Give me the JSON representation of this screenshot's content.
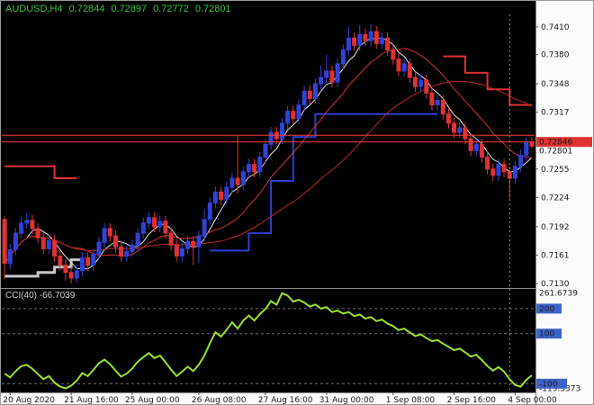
{
  "window": {
    "app": "MetaTrader chart",
    "symbol_period": "AUDUSD,H4"
  },
  "header": {
    "symbol": "AUDUSD,H4",
    "open": "0.72844",
    "high": "0.72897",
    "low": "0.72772",
    "close": "0.72801",
    "color": "#3fc13f"
  },
  "indicator_label": "CCI(40) -66.7039",
  "background": "#000000",
  "scales": {
    "axis_bg": "#fbfbfb",
    "axis_fg": "#1a1a1a",
    "separator": "#8a8a8a",
    "level_tag_bg": "#3c64c8",
    "level_tag_fg": "#ffffff",
    "border": "#9a9a9a"
  },
  "chart_data": [
    {
      "type": "candlestick",
      "title": "AUDUSD H4",
      "ylim": [
        0.71271,
        0.74238
      ],
      "up_color": "#3142d8",
      "down_color": "#e03232",
      "y_ticks": [
        {
          "v": 0.741,
          "label": "0.7410"
        },
        {
          "v": 0.738,
          "label": "0.7380"
        },
        {
          "v": 0.7348,
          "label": "0.7348"
        },
        {
          "v": 0.7317,
          "label": "0.7317"
        },
        {
          "v": 0.7255,
          "label": "0.7255"
        },
        {
          "v": 0.7224,
          "label": "0.7224"
        },
        {
          "v": 0.7192,
          "label": "0.7192"
        },
        {
          "v": 0.7161,
          "label": "0.7161"
        },
        {
          "v": 0.713,
          "label": "0.7130"
        }
      ],
      "x_labels": [
        {
          "i": 1,
          "label": "20 Aug 2020"
        },
        {
          "i": 12,
          "label": "21 Aug 16:00"
        },
        {
          "i": 23,
          "label": "25 Aug 00:00"
        },
        {
          "i": 35,
          "label": "26 Aug 08:00"
        },
        {
          "i": 47,
          "label": "27 Aug 16:00"
        },
        {
          "i": 58,
          "label": "31 Aug 00:00"
        },
        {
          "i": 70,
          "label": "1 Sep 08:00"
        },
        {
          "i": 81,
          "label": "2 Sep 16:00"
        },
        {
          "i": 92,
          "label": "4 Sep 00:00"
        }
      ],
      "candles": [
        [
          0.72,
          0.7204,
          0.7135,
          0.7152
        ],
        [
          0.7152,
          0.7173,
          0.7146,
          0.7167
        ],
        [
          0.7167,
          0.7191,
          0.7161,
          0.7185
        ],
        [
          0.7185,
          0.7203,
          0.7179,
          0.7196
        ],
        [
          0.7196,
          0.7207,
          0.719,
          0.7199
        ],
        [
          0.7199,
          0.7205,
          0.7184,
          0.719
        ],
        [
          0.719,
          0.7196,
          0.7174,
          0.718
        ],
        [
          0.718,
          0.7186,
          0.7162,
          0.7168
        ],
        [
          0.7168,
          0.7183,
          0.7162,
          0.7177
        ],
        [
          0.7177,
          0.7183,
          0.7154,
          0.716
        ],
        [
          0.716,
          0.7166,
          0.7144,
          0.715
        ],
        [
          0.715,
          0.7156,
          0.7133,
          0.7142
        ],
        [
          0.7142,
          0.7148,
          0.713,
          0.7136
        ],
        [
          0.7136,
          0.715,
          0.7131,
          0.7144
        ],
        [
          0.7144,
          0.7164,
          0.7138,
          0.7158
        ],
        [
          0.7158,
          0.7164,
          0.7144,
          0.715
        ],
        [
          0.715,
          0.7168,
          0.7144,
          0.7162
        ],
        [
          0.7162,
          0.7181,
          0.7156,
          0.7175
        ],
        [
          0.7175,
          0.7196,
          0.7169,
          0.719
        ],
        [
          0.719,
          0.7196,
          0.7176,
          0.7182
        ],
        [
          0.7182,
          0.7188,
          0.7164,
          0.717
        ],
        [
          0.717,
          0.7176,
          0.7154,
          0.716
        ],
        [
          0.716,
          0.7171,
          0.7154,
          0.7165
        ],
        [
          0.7165,
          0.7178,
          0.7159,
          0.7172
        ],
        [
          0.7172,
          0.7191,
          0.7166,
          0.7185
        ],
        [
          0.7185,
          0.7202,
          0.7179,
          0.7196
        ],
        [
          0.7196,
          0.7208,
          0.719,
          0.7202
        ],
        [
          0.7202,
          0.7208,
          0.7186,
          0.7192
        ],
        [
          0.7192,
          0.7204,
          0.7186,
          0.7198
        ],
        [
          0.7198,
          0.7204,
          0.7179,
          0.7185
        ],
        [
          0.7185,
          0.7191,
          0.7166,
          0.7172
        ],
        [
          0.7172,
          0.7178,
          0.7154,
          0.716
        ],
        [
          0.716,
          0.7174,
          0.7154,
          0.7168
        ],
        [
          0.7168,
          0.7182,
          0.7162,
          0.7176
        ],
        [
          0.7176,
          0.7182,
          0.715,
          0.717
        ],
        [
          0.717,
          0.7188,
          0.7152,
          0.7182
        ],
        [
          0.7182,
          0.7212,
          0.7176,
          0.72
        ],
        [
          0.72,
          0.7224,
          0.7194,
          0.7218
        ],
        [
          0.7218,
          0.7236,
          0.7212,
          0.723
        ],
        [
          0.723,
          0.7236,
          0.7216,
          0.7222
        ],
        [
          0.7222,
          0.7241,
          0.7216,
          0.7235
        ],
        [
          0.7235,
          0.7251,
          0.7229,
          0.7245
        ],
        [
          0.7245,
          0.7292,
          0.7228,
          0.7238
        ],
        [
          0.7238,
          0.7258,
          0.7232,
          0.7252
        ],
        [
          0.7252,
          0.7266,
          0.7246,
          0.726
        ],
        [
          0.726,
          0.7266,
          0.7246,
          0.7252
        ],
        [
          0.7252,
          0.7274,
          0.7246,
          0.7268
        ],
        [
          0.7268,
          0.7288,
          0.7262,
          0.7282
        ],
        [
          0.7282,
          0.7301,
          0.7276,
          0.7295
        ],
        [
          0.7295,
          0.7301,
          0.7282,
          0.7288
        ],
        [
          0.7288,
          0.7311,
          0.7282,
          0.7305
        ],
        [
          0.7305,
          0.7324,
          0.7299,
          0.7318
        ],
        [
          0.7318,
          0.7324,
          0.7304,
          0.731
        ],
        [
          0.731,
          0.7331,
          0.7304,
          0.7325
        ],
        [
          0.7325,
          0.7346,
          0.7319,
          0.734
        ],
        [
          0.734,
          0.7346,
          0.7326,
          0.7332
        ],
        [
          0.7332,
          0.7354,
          0.7326,
          0.7348
        ],
        [
          0.7348,
          0.7368,
          0.7342,
          0.7355
        ],
        [
          0.7355,
          0.738,
          0.7349,
          0.7362
        ],
        [
          0.7362,
          0.7368,
          0.7344,
          0.735
        ],
        [
          0.735,
          0.7376,
          0.7344,
          0.737
        ],
        [
          0.737,
          0.7391,
          0.7364,
          0.7385
        ],
        [
          0.7385,
          0.741,
          0.7379,
          0.7398
        ],
        [
          0.7398,
          0.7404,
          0.7384,
          0.739
        ],
        [
          0.739,
          0.7412,
          0.7384,
          0.7402
        ],
        [
          0.7402,
          0.7408,
          0.7389,
          0.7395
        ],
        [
          0.7395,
          0.7413,
          0.7389,
          0.7405
        ],
        [
          0.7405,
          0.7411,
          0.7386,
          0.7392
        ],
        [
          0.7392,
          0.7404,
          0.7386,
          0.7398
        ],
        [
          0.7398,
          0.7404,
          0.7379,
          0.7385
        ],
        [
          0.7385,
          0.7391,
          0.7369,
          0.7375
        ],
        [
          0.7375,
          0.7381,
          0.7356,
          0.7362
        ],
        [
          0.7362,
          0.7376,
          0.7356,
          0.737
        ],
        [
          0.737,
          0.7376,
          0.7349,
          0.7355
        ],
        [
          0.7355,
          0.7361,
          0.7339,
          0.7345
        ],
        [
          0.7345,
          0.7358,
          0.7339,
          0.7352
        ],
        [
          0.7352,
          0.7358,
          0.7332,
          0.7338
        ],
        [
          0.7338,
          0.7344,
          0.7319,
          0.7325
        ],
        [
          0.7325,
          0.7336,
          0.7319,
          0.733
        ],
        [
          0.733,
          0.7336,
          0.7309,
          0.7315
        ],
        [
          0.7315,
          0.7321,
          0.7299,
          0.7305
        ],
        [
          0.7305,
          0.7311,
          0.7289,
          0.7295
        ],
        [
          0.7295,
          0.7306,
          0.7289,
          0.73
        ],
        [
          0.73,
          0.7306,
          0.7282,
          0.7288
        ],
        [
          0.7288,
          0.7294,
          0.7269,
          0.7275
        ],
        [
          0.7275,
          0.7288,
          0.7269,
          0.7282
        ],
        [
          0.7282,
          0.7288,
          0.7262,
          0.7268
        ],
        [
          0.7268,
          0.7274,
          0.7249,
          0.7255
        ],
        [
          0.7255,
          0.7261,
          0.7242,
          0.7248
        ],
        [
          0.7248,
          0.7266,
          0.7242,
          0.726
        ],
        [
          0.726,
          0.7266,
          0.7246,
          0.7252
        ],
        [
          0.7252,
          0.7258,
          0.7222,
          0.7245
        ],
        [
          0.7245,
          0.7264,
          0.7239,
          0.7258
        ],
        [
          0.7258,
          0.7276,
          0.7252,
          0.727
        ],
        [
          0.727,
          0.729,
          0.7264,
          0.72844
        ],
        [
          0.72844,
          0.72897,
          0.72772,
          0.72801
        ]
      ],
      "overlays": [
        {
          "name": "ma-fast",
          "type": "sma",
          "period": 5,
          "color": "#e0e0e0",
          "width": 1
        },
        {
          "name": "ma-medium",
          "type": "sma",
          "period": 13,
          "color": "#d23434",
          "width": 1
        },
        {
          "name": "ma-slow",
          "type": "sma",
          "period": 34,
          "color": "#b82828",
          "width": 1
        }
      ],
      "step_lines": [
        {
          "name": "hilo-left-silver",
          "color": "#c8c8c8",
          "width": 3,
          "segments": [
            [
              0,
              6,
              0.7138
            ],
            [
              6,
              9,
              0.7142
            ],
            [
              9,
              12,
              0.7148
            ],
            [
              12,
              14,
              0.7156
            ]
          ]
        },
        {
          "name": "hilo-left-red",
          "color": "#e03232",
          "width": 2,
          "segments": [
            [
              0,
              9,
              0.7258
            ],
            [
              9,
              13,
              0.7245
            ]
          ]
        },
        {
          "name": "hilo-blue-support",
          "color": "#2c3fd4",
          "width": 2,
          "segments": [
            [
              37,
              44,
              0.7166
            ],
            [
              44,
              48,
              0.7185
            ],
            [
              48,
              52,
              0.7242
            ],
            [
              52,
              56,
              0.729
            ],
            [
              56,
              78,
              0.7315
            ]
          ]
        },
        {
          "name": "hilo-right-red-resistance",
          "color": "#e03232",
          "width": 2,
          "segments": [
            [
              79,
              83,
              0.7378
            ],
            [
              83,
              87,
              0.736
            ],
            [
              87,
              91,
              0.7342
            ],
            [
              91,
              95,
              0.7325
            ]
          ]
        }
      ],
      "h_lines": [
        {
          "v": 0.7292,
          "color": "#ff3b3b",
          "width": 1
        },
        {
          "v": 0.72846,
          "color": "#ff3b3b",
          "width": 1,
          "tag": "0.72846",
          "tag_bg": "#e03232",
          "tag_fg": "#ffffff"
        }
      ],
      "price_labels": [
        {
          "v": 0.72801,
          "label": "0.72801"
        }
      ],
      "v_line_index": 91
    },
    {
      "type": "line",
      "name": "CCI",
      "period": 40,
      "current": "-66.7039",
      "color": "#9be12c",
      "width": 2,
      "ylim": [
        -135,
        275
      ],
      "levels": [
        {
          "v": 200,
          "label": "200",
          "boxed": true
        },
        {
          "v": 100,
          "label": "100",
          "boxed": true
        },
        {
          "v": -100,
          "label": "-100",
          "boxed": true
        }
      ],
      "edge_labels": [
        {
          "v": 261.6739,
          "label": "261.6739"
        },
        {
          "v": -119.3373,
          "label": "-119.3373"
        }
      ],
      "values": [
        -60,
        -75,
        -50,
        -30,
        -25,
        -40,
        -62,
        -82,
        -70,
        -96,
        -112,
        -119.3373,
        -108,
        -88,
        -58,
        -70,
        -45,
        -18,
        -4,
        -22,
        -48,
        -72,
        -60,
        -40,
        -12,
        6,
        22,
        2,
        12,
        -14,
        -44,
        -70,
        -52,
        -32,
        -50,
        -24,
        12,
        62,
        105,
        88,
        115,
        145,
        120,
        152,
        172,
        152,
        178,
        198,
        230,
        215,
        261.6739,
        252,
        228,
        235,
        224,
        208,
        216,
        200,
        206,
        186,
        192,
        180,
        186,
        170,
        176,
        160,
        166,
        150,
        156,
        140,
        130,
        114,
        120,
        104,
        90,
        97,
        82,
        70,
        74,
        60,
        47,
        34,
        40,
        25,
        8,
        15,
        -6,
        -30,
        -48,
        -34,
        -52,
        -82,
        -106,
        -112,
        -85,
        -66.7039
      ]
    }
  ]
}
